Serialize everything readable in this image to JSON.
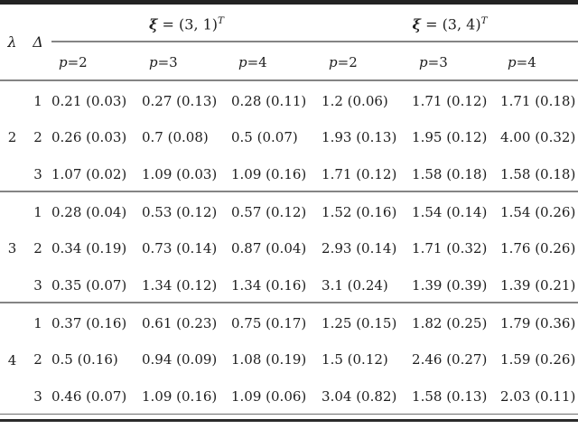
{
  "table": {
    "header": {
      "lambda": "λ",
      "delta": "Δ",
      "groups": [
        {
          "var": "ξ",
          "eq": " = (3, 1)",
          "sup": "T"
        },
        {
          "var": "ξ",
          "eq": " = (3, 4)",
          "sup": "T"
        }
      ],
      "sub_headers": [
        {
          "var": "p",
          "rest": "=2"
        },
        {
          "var": "p",
          "rest": "=3"
        },
        {
          "var": "p",
          "rest": "=4"
        },
        {
          "var": "p",
          "rest": "=2"
        },
        {
          "var": "p",
          "rest": "=3"
        },
        {
          "var": "p",
          "rest": "=4"
        }
      ]
    },
    "body": [
      {
        "lambda": "2",
        "rows": [
          {
            "delta": "1",
            "cells": [
              "0.21 (0.03)",
              "0.27 (0.13)",
              "0.28 (0.11)",
              "1.2 (0.06)",
              "1.71 (0.12)",
              "1.71 (0.18)"
            ]
          },
          {
            "delta": "2",
            "cells": [
              "0.26 (0.03)",
              "0.7 (0.08)",
              "0.5 (0.07)",
              "1.93 (0.13)",
              "1.95 (0.12)",
              "4.00 (0.32)"
            ]
          },
          {
            "delta": "3",
            "cells": [
              "1.07 (0.02)",
              "1.09 (0.03)",
              "1.09 (0.16)",
              "1.71 (0.12)",
              "1.58 (0.18)",
              "1.58 (0.18)"
            ]
          }
        ]
      },
      {
        "lambda": "3",
        "rows": [
          {
            "delta": "1",
            "cells": [
              "0.28 (0.04)",
              "0.53 (0.12)",
              "0.57 (0.12)",
              "1.52 (0.16)",
              "1.54 (0.14)",
              "1.54 (0.26)"
            ]
          },
          {
            "delta": "2",
            "cells": [
              "0.34 (0.19)",
              "0.73 (0.14)",
              "0.87 (0.04)",
              "2.93 (0.14)",
              "1.71 (0.32)",
              "1.76 (0.26)"
            ]
          },
          {
            "delta": "3",
            "cells": [
              "0.35 (0.07)",
              "1.34 (0.12)",
              "1.34 (0.16)",
              "3.1 (0.24)",
              "1.39 (0.39)",
              "1.39 (0.21)"
            ]
          }
        ]
      },
      {
        "lambda": "4",
        "rows": [
          {
            "delta": "1",
            "cells": [
              "0.37 (0.16)",
              "0.61 (0.23)",
              "0.75 (0.17)",
              "1.25 (0.15)",
              "1.82 (0.25)",
              "1.79 (0.36)"
            ]
          },
          {
            "delta": "2",
            "cells": [
              "0.5 (0.16)",
              "0.94 (0.09)",
              "1.08 (0.19)",
              "1.5 (0.12)",
              "2.46 (0.27)",
              "1.59 (0.26)"
            ]
          },
          {
            "delta": "3",
            "cells": [
              "0.46 (0.07)",
              "1.09 (0.16)",
              "1.09 (0.06)",
              "3.04 (0.82)",
              "1.58 (0.13)",
              "2.03 (0.11)"
            ]
          }
        ]
      }
    ]
  }
}
